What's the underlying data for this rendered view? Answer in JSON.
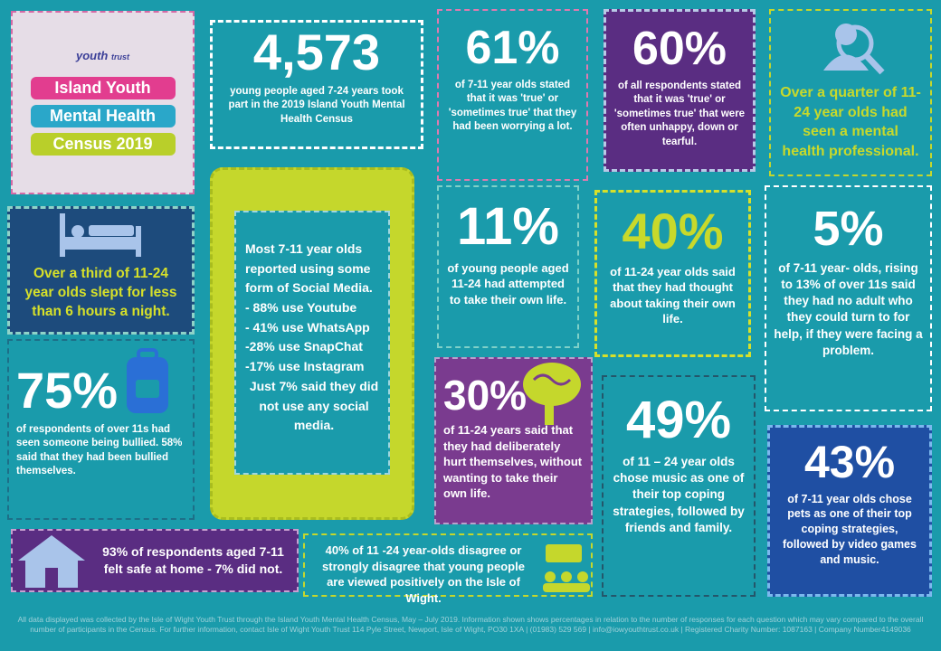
{
  "header": {
    "logo_left": "youth",
    "logo_right": "trust",
    "title_lines": [
      "Island Youth",
      "Mental Health",
      "Census 2019"
    ]
  },
  "panels": [
    {
      "stat": "4,573",
      "text": "young people aged 7-24 years took part in the 2019 Island Youth Mental Health Census"
    },
    {
      "stat": "61%",
      "text": "of 7-11 year olds stated that it was 'true' or 'sometimes true' that they had been worrying a lot."
    },
    {
      "stat": "60%",
      "text": "of all respondents stated that it was 'true' or 'sometimes true' that were often unhappy, down or tearful."
    },
    {
      "text": "Over a quarter of 11- 24 year olds had seen a mental health professional."
    },
    {
      "text": "Over a third of 11-24 year olds slept for less than 6 hours a night."
    },
    {
      "stat": "11%",
      "text": "of young people aged 11-24 had attempted to take their own life."
    },
    {
      "stat": "40%",
      "text": "of 11-24 year olds said that they had thought about taking their own life."
    },
    {
      "stat": "5%",
      "text": "of 7-11 year- olds, rising to 13% of over 11s said they had no adult who they could turn to for help, if they were facing a problem."
    },
    {
      "stat": "75%",
      "text": "of respondents of over 11s had seen someone being bullied. 58% said that they had been bullied themselves."
    },
    {
      "stat": "30%",
      "text": "of 11-24 years said that they had deliberately hurt themselves, without wanting to take their own life."
    },
    {
      "stat": "49%",
      "text": "of 11 – 24 year olds chose music as one of their top coping strategies, followed by friends and family."
    },
    {
      "stat": "43%",
      "text": "of 7-11 year olds chose pets as one of their top coping strategies, followed by video games and music."
    },
    {
      "text": "93% of respondents aged 7-11 felt safe at home - 7% did not."
    },
    {
      "text": "40% of 11 -24 year-olds disagree or strongly disagree that young people are viewed positively on the Isle of Wight."
    }
  ],
  "social_media": {
    "intro": "Most 7-11 year olds reported using some form of Social Media.",
    "items": [
      "- 88% use Youtube",
      "- 41% use WhatsApp",
      "-28% use SnapChat",
      "-17% use Instagram"
    ],
    "closing": "Just 7% said they did not use any social media."
  },
  "footer": "All data displayed was collected by the Isle of Wight Youth Trust through the Island Youth Mental Health Census, May – July 2019. Information shown shows percentages in relation to the number of responses for each question which may vary compared to the overall number of participants in the Census. For further information, contact Isle of Wight Youth Trust 114 Pyle Street, Newport, Isle of Wight, PO30 1XA | (01983) 529 569 | info@iowyouthtrust.co.uk | Registered Charity Number: 1087163 | Company Number4149036"
}
